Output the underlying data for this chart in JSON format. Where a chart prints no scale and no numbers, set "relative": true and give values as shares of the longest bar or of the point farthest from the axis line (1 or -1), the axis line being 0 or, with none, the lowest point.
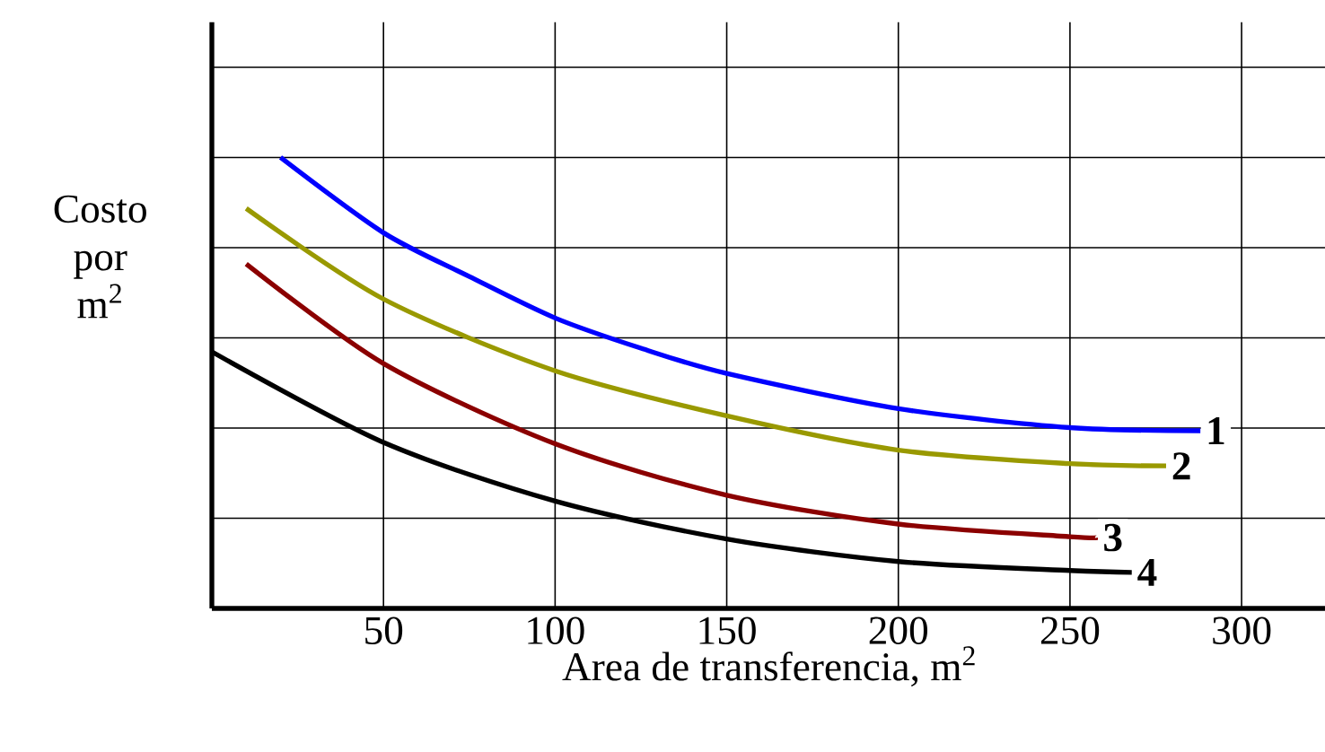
{
  "chart_data": {
    "type": "line",
    "relative": true,
    "xlabel": "Area de transferencia, m$^{2}$",
    "ylabel": "Costo por m$^{2}$",
    "xlim": [
      0,
      325
    ],
    "xticks": [
      50,
      100,
      150,
      200,
      250,
      300
    ],
    "grid": true,
    "marker": "none",
    "line_style": "solid",
    "series": [
      {
        "name": "1",
        "color": "#0000ff",
        "x": [
          20,
          50,
          75,
          100,
          125,
          150,
          200,
          250,
          288
        ],
        "values": [
          1,
          0.833,
          0.736,
          0.644,
          0.577,
          0.521,
          0.443,
          0.401,
          0.394
        ]
      },
      {
        "name": "2",
        "color": "#999900",
        "x": [
          10,
          50,
          100,
          150,
          200,
          250,
          278
        ],
        "values": [
          0.887,
          0.686,
          0.527,
          0.427,
          0.351,
          0.321,
          0.316
        ]
      },
      {
        "name": "3",
        "color": "#8b0000",
        "x": [
          10,
          50,
          100,
          150,
          200,
          250,
          258
        ],
        "values": [
          0.764,
          0.543,
          0.365,
          0.251,
          0.187,
          0.159,
          0.157
        ]
      },
      {
        "name": "4",
        "color": "#000000",
        "x": [
          0,
          50,
          100,
          150,
          200,
          250,
          268
        ],
        "values": [
          0.569,
          0.368,
          0.238,
          0.154,
          0.104,
          0.084,
          0.08
        ]
      }
    ]
  }
}
